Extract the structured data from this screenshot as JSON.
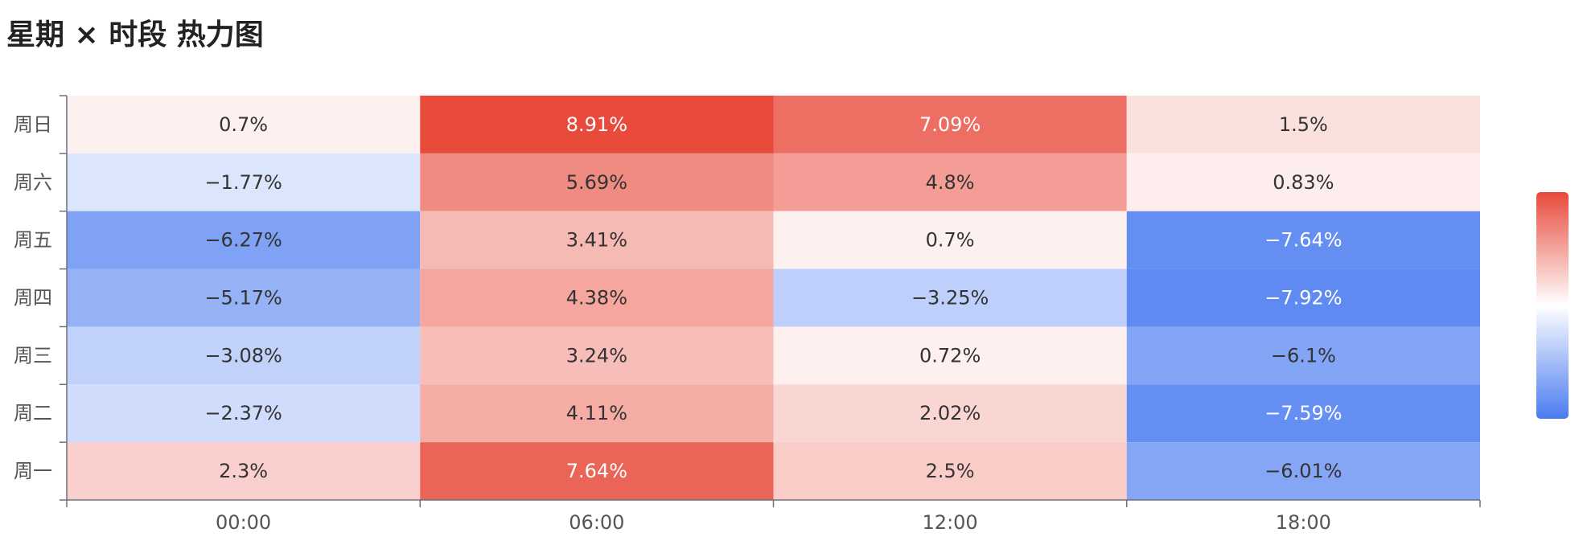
{
  "chart_data": {
    "type": "heatmap",
    "title": "星期 × 时段 热力图",
    "x": [
      "00:00",
      "06:00",
      "12:00",
      "18:00"
    ],
    "y": [
      "周日",
      "周六",
      "周五",
      "周四",
      "周三",
      "周二",
      "周一"
    ],
    "values": [
      [
        0.7,
        8.91,
        7.09,
        1.5
      ],
      [
        -1.77,
        5.69,
        4.8,
        0.83
      ],
      [
        -6.27,
        3.41,
        0.7,
        -7.64
      ],
      [
        -5.17,
        4.38,
        -3.25,
        -7.92
      ],
      [
        -3.08,
        3.24,
        0.72,
        -6.1
      ],
      [
        -2.37,
        4.11,
        2.02,
        -7.59
      ],
      [
        2.3,
        7.64,
        2.5,
        -6.01
      ]
    ],
    "labels": [
      [
        "0.7%",
        "8.91%",
        "7.09%",
        "1.5%"
      ],
      [
        "−1.77%",
        "5.69%",
        "4.8%",
        "0.83%"
      ],
      [
        "−6.27%",
        "3.41%",
        "0.7%",
        "−7.64%"
      ],
      [
        "−5.17%",
        "4.38%",
        "−3.25%",
        "−7.92%"
      ],
      [
        "−3.08%",
        "3.24%",
        "0.72%",
        "−6.1%"
      ],
      [
        "−2.37%",
        "4.11%",
        "2.02%",
        "−7.59%"
      ],
      [
        "2.3%",
        "7.64%",
        "2.5%",
        "−6.01%"
      ]
    ],
    "color_range": [
      -8.91,
      8.91
    ],
    "colors": {
      "low": "#4a7bf0",
      "mid": "#ffffff",
      "high": "#e84a3c"
    },
    "legend": "right",
    "grid": false
  }
}
